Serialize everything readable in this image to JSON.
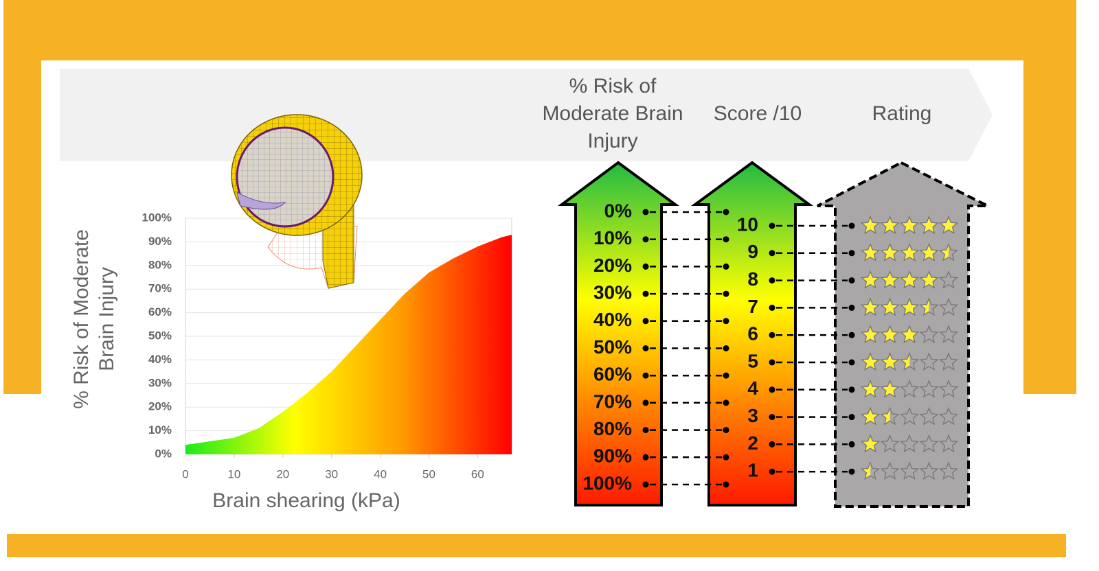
{
  "chart_data": {
    "type": "area",
    "x": [
      0,
      5,
      10,
      15,
      20,
      25,
      30,
      35,
      40,
      45,
      50,
      55,
      60,
      65,
      67
    ],
    "values": [
      4,
      5.5,
      7,
      11,
      18,
      26,
      35,
      46,
      57,
      68,
      77,
      83,
      88,
      92,
      93
    ],
    "gradient": [
      "#1aeb1a",
      "#ffff00",
      "#ff9900",
      "#ff0000"
    ],
    "xlim": [
      0,
      67
    ],
    "ylim": [
      0,
      100
    ],
    "xticks": [
      0,
      10,
      20,
      30,
      40,
      50,
      60
    ],
    "yticks": [
      {
        "value": 0,
        "label": "0%"
      },
      {
        "value": 10,
        "label": "10%"
      },
      {
        "value": 20,
        "label": "20%"
      },
      {
        "value": 30,
        "label": "30%"
      },
      {
        "value": 40,
        "label": "40%"
      },
      {
        "value": 50,
        "label": "50%"
      },
      {
        "value": 60,
        "label": "60%"
      },
      {
        "value": 70,
        "label": "70%"
      },
      {
        "value": 80,
        "label": "80%"
      },
      {
        "value": 90,
        "label": "90%"
      },
      {
        "value": 100,
        "label": "100%"
      }
    ],
    "xlabel": "Brain shearing (kPa)",
    "ylabel": [
      "% Risk of Moderate",
      "Brain Injury"
    ],
    "grid": true
  },
  "header": {
    "risk": [
      "% Risk of",
      "Moderate Brain",
      "Injury"
    ],
    "score": "Score /10",
    "rating": "Rating"
  },
  "risk_levels": [
    "0%",
    "10%",
    "20%",
    "30%",
    "40%",
    "50%",
    "60%",
    "70%",
    "80%",
    "90%",
    "100%"
  ],
  "scores": [
    10,
    9,
    8,
    7,
    6,
    5,
    4,
    3,
    2,
    1
  ],
  "stars": [
    5,
    4.5,
    4,
    3.5,
    3,
    2.5,
    2,
    1.5,
    1,
    0.5
  ]
}
